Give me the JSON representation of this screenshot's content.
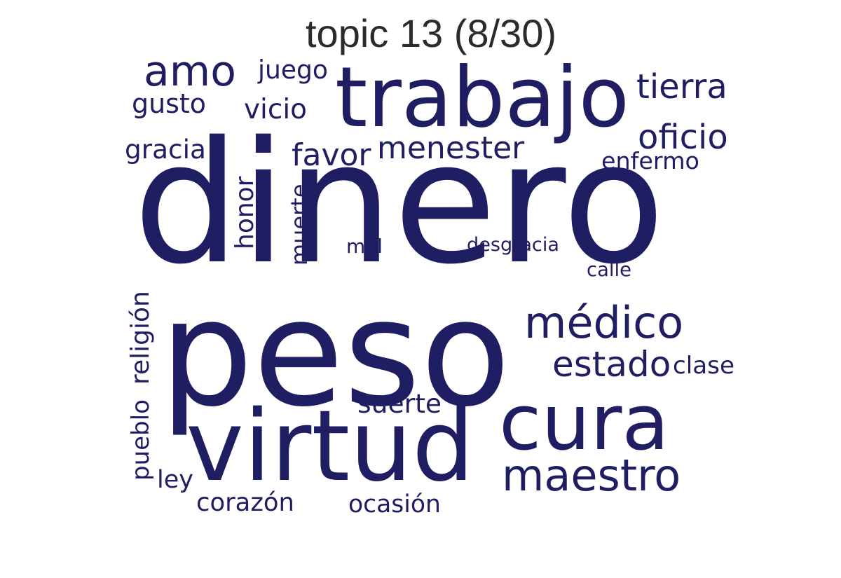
{
  "title": "topic 13 (8/30)",
  "word_color": "#1f1e63",
  "title_color": "#2b2b2b",
  "words": [
    {
      "id": "dinero",
      "text": "dinero"
    },
    {
      "id": "peso",
      "text": "peso"
    },
    {
      "id": "trabajo",
      "text": "trabajo"
    },
    {
      "id": "virtud",
      "text": "virtud"
    },
    {
      "id": "cura",
      "text": "cura"
    },
    {
      "id": "amo",
      "text": "amo"
    },
    {
      "id": "maestro",
      "text": "maestro"
    },
    {
      "id": "medico",
      "text": "médico"
    },
    {
      "id": "estado",
      "text": "estado"
    },
    {
      "id": "oficio",
      "text": "oficio"
    },
    {
      "id": "tierra",
      "text": "tierra"
    },
    {
      "id": "menester",
      "text": "menester"
    },
    {
      "id": "favor",
      "text": "favor"
    },
    {
      "id": "religion",
      "text": "religión"
    },
    {
      "id": "pueblo",
      "text": "pueblo"
    },
    {
      "id": "honor",
      "text": "honor"
    },
    {
      "id": "muerte",
      "text": "muerte"
    },
    {
      "id": "suerte",
      "text": "suerte"
    },
    {
      "id": "gracia",
      "text": "gracia"
    },
    {
      "id": "gusto",
      "text": "gusto"
    },
    {
      "id": "vicio",
      "text": "vicio"
    },
    {
      "id": "juego",
      "text": "juego"
    },
    {
      "id": "clase",
      "text": "clase"
    },
    {
      "id": "enfermo",
      "text": "enfermo"
    },
    {
      "id": "corazon",
      "text": "corazón"
    },
    {
      "id": "ocasion",
      "text": "ocasión"
    },
    {
      "id": "ley",
      "text": "ley"
    },
    {
      "id": "desgracia",
      "text": "desgracia"
    },
    {
      "id": "calle",
      "text": "calle"
    },
    {
      "id": "mal",
      "text": "mal"
    }
  ]
}
